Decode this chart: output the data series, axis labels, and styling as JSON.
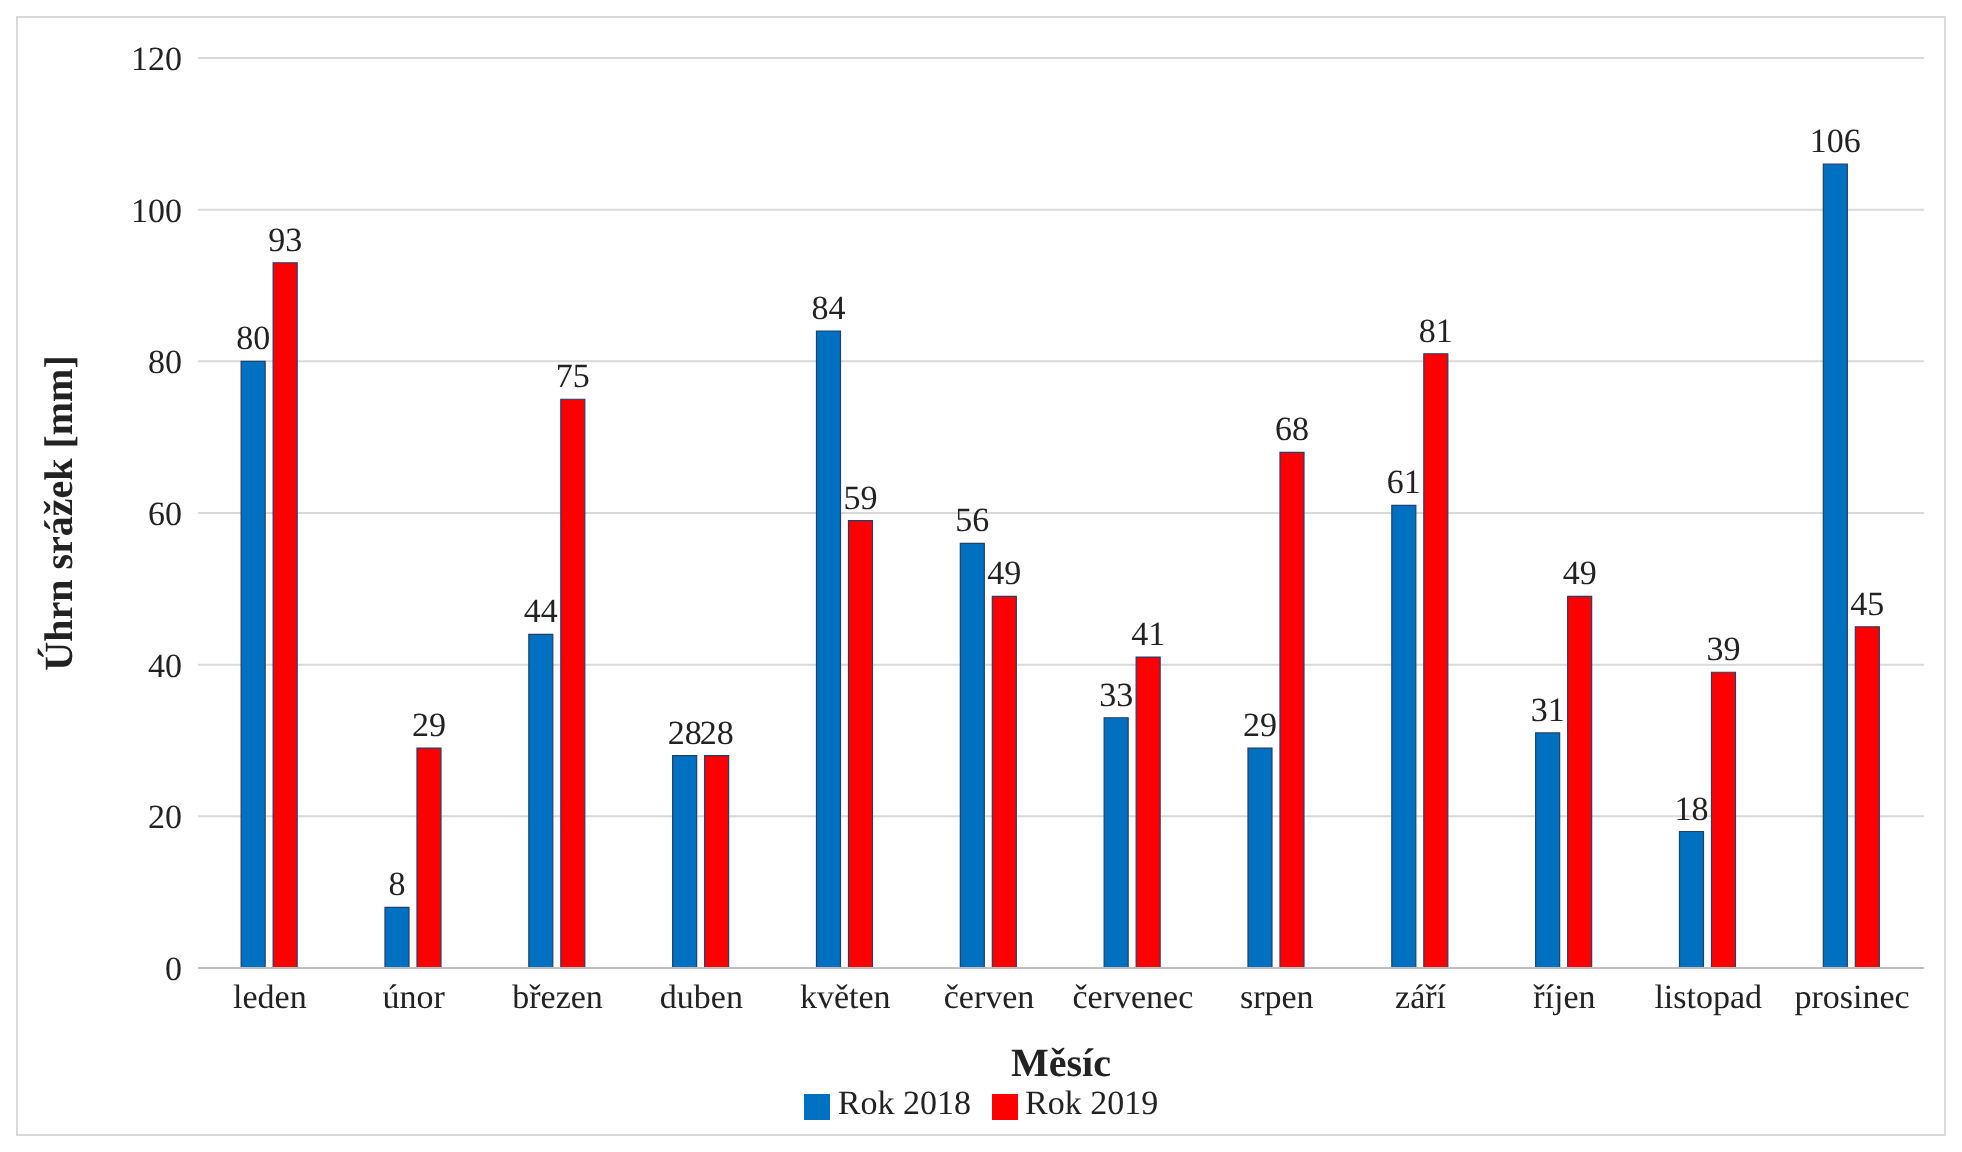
{
  "chart_data": {
    "type": "bar",
    "xlabel": "Měsíc",
    "ylabel": "Úhrn srážek [mm]",
    "categories": [
      "leden",
      "únor",
      "březen",
      "duben",
      "květen",
      "červen",
      "červenec",
      "srpen",
      "září",
      "říjen",
      "listopad",
      "prosinec"
    ],
    "series": [
      {
        "name": "Rok 2018",
        "color": "#0070c0",
        "values": [
          80,
          8,
          44,
          28,
          84,
          56,
          33,
          29,
          61,
          31,
          18,
          106
        ]
      },
      {
        "name": "Rok 2019",
        "color": "#ff0000",
        "values": [
          93,
          29,
          75,
          28,
          59,
          49,
          41,
          68,
          81,
          49,
          39,
          45
        ]
      }
    ],
    "ylim": [
      0,
      120
    ],
    "yticks": [
      0,
      20,
      40,
      60,
      80,
      100,
      120
    ],
    "grid": "y",
    "legend": "bottom",
    "data_labels": true
  }
}
